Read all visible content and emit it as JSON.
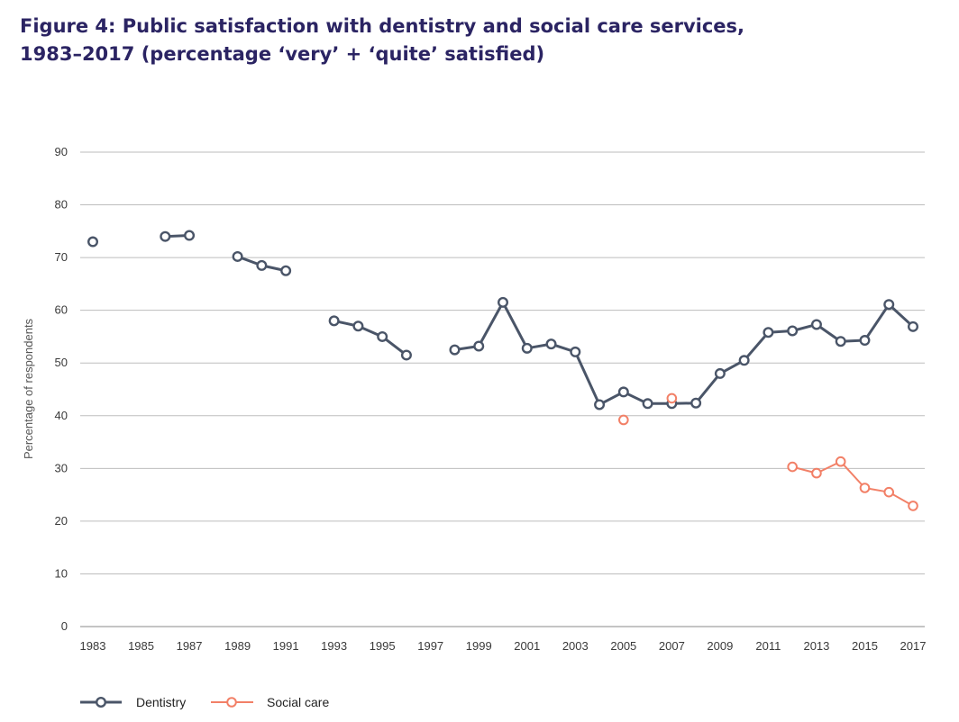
{
  "title_lines": [
    "Figure 4: Public satisfaction with dentistry and social care services,",
    "1983–2017 (percentage ‘very’ + ‘quite’ satisfied)"
  ],
  "chart_data": {
    "type": "line",
    "title": "Figure 4: Public satisfaction with dentistry and social care services, 1983–2017 (percentage ‘very’ + ‘quite’ satisfied)",
    "xlabel": "",
    "ylabel": "Percentage of respondents",
    "ylim": [
      0,
      90
    ],
    "yticks": [
      0,
      10,
      20,
      30,
      40,
      50,
      60,
      70,
      80,
      90
    ],
    "xlim": [
      1983,
      2017
    ],
    "xticks": [
      1983,
      1985,
      1987,
      1989,
      1991,
      1993,
      1995,
      1997,
      1999,
      2001,
      2003,
      2005,
      2007,
      2009,
      2011,
      2013,
      2015,
      2017
    ],
    "grid": true,
    "legend": "bottom-left",
    "series": [
      {
        "name": "Dentistry",
        "color": "#4a5568",
        "x": [
          1983,
          1986,
          1987,
          1989,
          1990,
          1991,
          1993,
          1994,
          1995,
          1996,
          1998,
          1999,
          2000,
          2001,
          2002,
          2003,
          2004,
          2005,
          2006,
          2007,
          2008,
          2009,
          2010,
          2011,
          2012,
          2013,
          2014,
          2015,
          2016,
          2017
        ],
        "y": [
          73,
          74,
          74.2,
          70.2,
          68.5,
          67.5,
          58,
          57,
          55,
          51.5,
          52.5,
          53.2,
          61.5,
          52.8,
          53.6,
          52.1,
          42.1,
          44.5,
          42.3,
          42.3,
          42.4,
          48,
          50.5,
          55.8,
          56.1,
          57.3,
          54.1,
          54.3,
          61.1,
          56.9
        ],
        "segments": [
          [
            1983
          ],
          [
            1986,
            1987
          ],
          [
            1989,
            1990,
            1991
          ],
          [
            1993,
            1994,
            1995,
            1996
          ],
          [
            1998,
            1999,
            2000,
            2001,
            2002,
            2003,
            2004,
            2005,
            2006,
            2007,
            2008,
            2009,
            2010,
            2011,
            2012,
            2013,
            2014,
            2015,
            2016,
            2017
          ]
        ]
      },
      {
        "name": "Social care",
        "color": "#f28067",
        "x": [
          2005,
          2007,
          2012,
          2013,
          2014,
          2015,
          2016,
          2017
        ],
        "y": [
          39.2,
          43.3,
          30.3,
          29.1,
          31.3,
          26.3,
          25.5,
          22.9
        ],
        "segments": [
          [
            2005
          ],
          [
            2007
          ],
          [
            2012,
            2013,
            2014,
            2015,
            2016,
            2017
          ]
        ]
      }
    ]
  }
}
